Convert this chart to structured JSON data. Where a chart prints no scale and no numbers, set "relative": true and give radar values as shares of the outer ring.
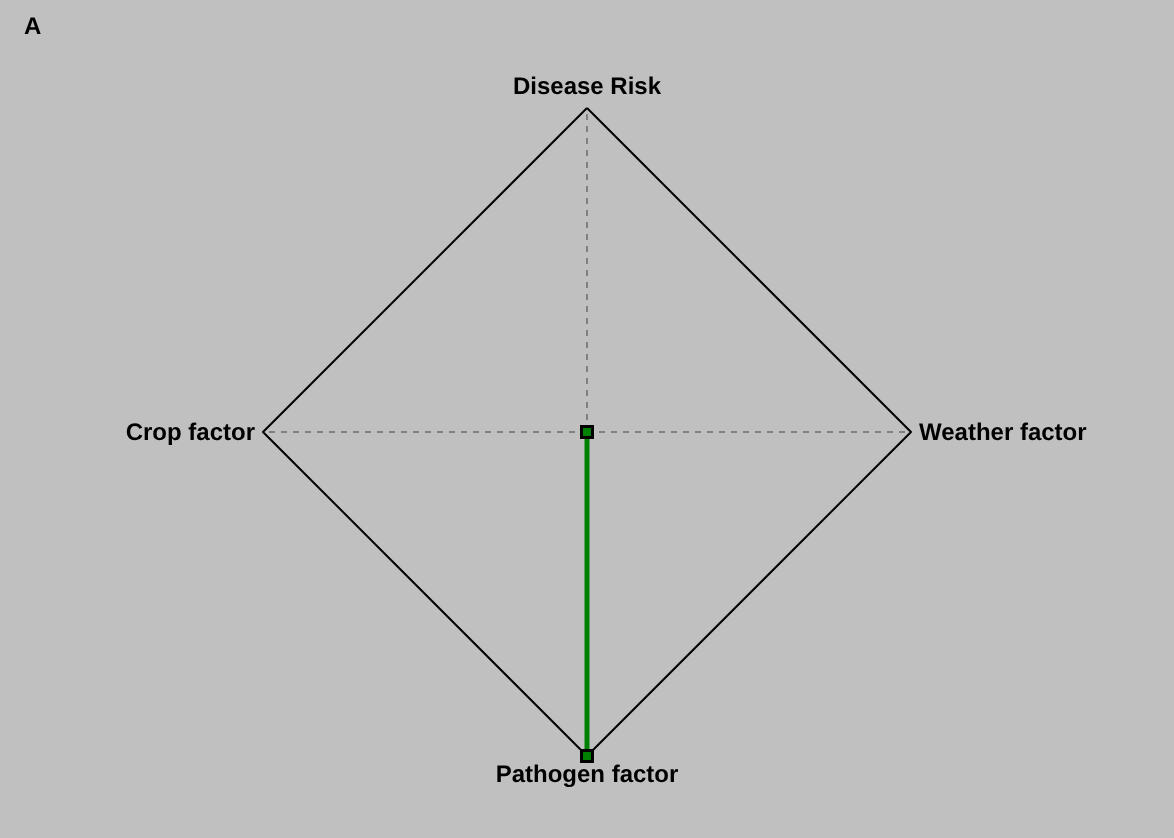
{
  "chart_data": {
    "type": "radar",
    "relative": true,
    "marker": "square",
    "annotations": [
      "A"
    ],
    "categories": [
      "Disease Risk",
      "Weather factor",
      "Pathogen factor",
      "Crop factor"
    ],
    "series": [
      {
        "color": "#008000",
        "values": [
          0,
          0,
          1,
          0
        ]
      }
    ]
  }
}
